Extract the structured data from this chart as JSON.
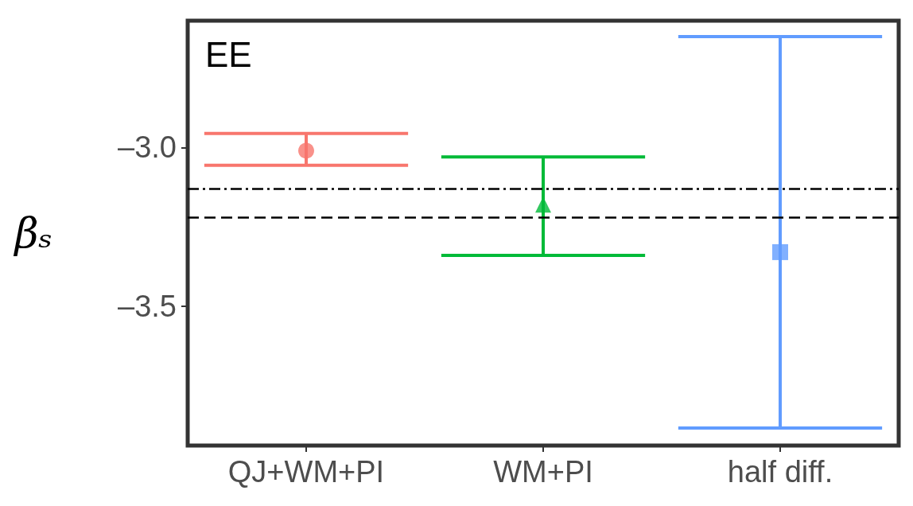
{
  "chart_data": {
    "type": "scatter",
    "ylabel": "βₛ",
    "annotations": [
      "EE"
    ],
    "categories": [
      "QJ+WM+PI",
      "WM+PI",
      "half diff."
    ],
    "ylim": [
      -3.94,
      -2.6
    ],
    "yticks": [
      {
        "value": -3.0,
        "label": "–3.0"
      },
      {
        "value": -3.5,
        "label": "–3.5"
      }
    ],
    "grid": false,
    "series": [
      {
        "color": "#f8766d",
        "marker": "circle",
        "x": [
          "QJ+WM+PI"
        ],
        "values": [
          -3.01
        ],
        "errors": [
          [
            -3.056,
            -2.956
          ]
        ]
      },
      {
        "color": "#00ba38",
        "marker": "triangle",
        "x": [
          "WM+PI"
        ],
        "values": [
          -3.18
        ],
        "errors": [
          [
            -3.34,
            -3.03
          ]
        ]
      },
      {
        "color": "#619cff",
        "marker": "square",
        "x": [
          "half diff."
        ],
        "values": [
          -3.33
        ],
        "errors": [
          [
            -3.885,
            -2.65
          ]
        ]
      }
    ],
    "ref_lines": [
      {
        "axis": "y",
        "value": -3.13,
        "color": "#000000",
        "line_style": "dashdot"
      },
      {
        "axis": "y",
        "value": -3.22,
        "color": "#000000",
        "line_style": "dashed"
      }
    ]
  }
}
